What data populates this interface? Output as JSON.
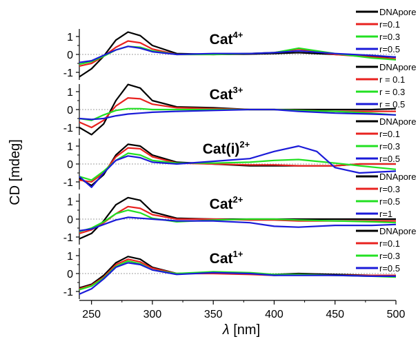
{
  "figure": {
    "ylabel": "CD [mdeg]",
    "xlabel_symbol": "λ",
    "xlabel_unit": " [nm]",
    "xticks": [
      "250",
      "300",
      "350",
      "400",
      "450",
      "500"
    ]
  },
  "colors": {
    "black": "#000000",
    "red": "#e8221f",
    "green": "#22e022",
    "blue": "#1a1ad8",
    "zero_line": "#808080"
  },
  "chart_data": [
    {
      "type": "line",
      "title_base": "Cat",
      "title_sup": "4+",
      "x": [
        240,
        250,
        260,
        270,
        280,
        290,
        300,
        320,
        350,
        380,
        400,
        420,
        450,
        480,
        500
      ],
      "ylim": [
        -1.5,
        1.5
      ],
      "yticks": [
        -1,
        0,
        1
      ],
      "series": [
        {
          "name": "DNApore",
          "color": "black",
          "values": [
            -1.25,
            -0.8,
            -0.1,
            0.8,
            1.25,
            1.05,
            0.5,
            0.05,
            0.0,
            0.02,
            0.05,
            0.1,
            0.0,
            -0.1,
            -0.15
          ]
        },
        {
          "name": "r=0.1",
          "color": "red",
          "values": [
            -0.65,
            -0.5,
            -0.1,
            0.4,
            0.75,
            0.65,
            0.3,
            0.0,
            0.0,
            0.05,
            0.1,
            0.3,
            0.0,
            -0.15,
            -0.25
          ]
        },
        {
          "name": "r=0.3",
          "color": "green",
          "values": [
            -0.55,
            -0.4,
            -0.1,
            0.25,
            0.45,
            0.4,
            0.2,
            0.0,
            0.0,
            0.05,
            0.1,
            0.35,
            0.05,
            -0.2,
            -0.3
          ]
        },
        {
          "name": "r=0.5",
          "color": "blue",
          "values": [
            -0.45,
            -0.35,
            -0.05,
            0.25,
            0.45,
            0.35,
            0.15,
            0.0,
            0.05,
            0.05,
            0.1,
            0.2,
            0.05,
            -0.05,
            -0.15
          ]
        }
      ]
    },
    {
      "type": "line",
      "title_base": "Cat",
      "title_sup": "3+",
      "x": [
        240,
        250,
        260,
        270,
        280,
        290,
        300,
        320,
        350,
        380,
        400,
        420,
        450,
        480,
        500
      ],
      "ylim": [
        -1.5,
        1.5
      ],
      "yticks": [
        -1,
        0,
        1
      ],
      "series": [
        {
          "name": "DNApore",
          "color": "black",
          "values": [
            -1.0,
            -1.4,
            -0.8,
            0.5,
            1.4,
            1.2,
            0.5,
            0.15,
            0.1,
            0.0,
            0.0,
            0.0,
            0.0,
            0.0,
            0.05
          ]
        },
        {
          "name": "r = 0.1",
          "color": "red",
          "values": [
            -0.7,
            -1.0,
            -0.6,
            0.2,
            0.65,
            0.6,
            0.3,
            0.1,
            0.05,
            0.0,
            0.0,
            -0.05,
            -0.1,
            -0.1,
            -0.1
          ]
        },
        {
          "name": "r = 0.3",
          "color": "green",
          "values": [
            -0.5,
            -0.6,
            -0.3,
            -0.05,
            0.05,
            0.05,
            0.0,
            0.0,
            0.0,
            0.0,
            0.0,
            -0.05,
            -0.1,
            -0.2,
            -0.3
          ]
        },
        {
          "name": "r = 0.5",
          "color": "blue",
          "values": [
            -0.5,
            -0.55,
            -0.5,
            -0.35,
            -0.25,
            -0.2,
            -0.15,
            -0.1,
            -0.05,
            0.0,
            0.0,
            -0.1,
            -0.2,
            -0.25,
            -0.3
          ]
        }
      ]
    },
    {
      "type": "line",
      "title_base": "Cat(i)",
      "title_sup": "2+",
      "x": [
        240,
        250,
        260,
        270,
        280,
        290,
        300,
        320,
        350,
        380,
        400,
        420,
        435,
        450,
        470,
        500
      ],
      "ylim": [
        -1.5,
        1.5
      ],
      "yticks": [
        -1,
        0,
        1
      ],
      "series": [
        {
          "name": "DNApore",
          "color": "black",
          "values": [
            -0.8,
            -1.2,
            -0.6,
            0.5,
            1.1,
            1.0,
            0.5,
            0.1,
            0.0,
            -0.1,
            -0.1,
            -0.1,
            -0.1,
            -0.1,
            0.0,
            0.0
          ]
        },
        {
          "name": "r=0.1",
          "color": "red",
          "values": [
            -0.9,
            -1.0,
            -0.5,
            0.4,
            0.9,
            0.85,
            0.4,
            0.05,
            0.0,
            -0.05,
            -0.05,
            -0.1,
            -0.1,
            -0.1,
            0.0,
            0.0
          ]
        },
        {
          "name": "r=0.3",
          "color": "green",
          "values": [
            -0.7,
            -0.9,
            -0.4,
            0.2,
            0.6,
            0.5,
            0.2,
            0.05,
            0.05,
            0.1,
            0.2,
            0.25,
            0.15,
            0.05,
            -0.1,
            -0.3
          ]
        },
        {
          "name": "r=0.5",
          "color": "blue",
          "values": [
            -0.7,
            -1.3,
            -0.5,
            0.2,
            0.45,
            0.35,
            0.1,
            0.0,
            0.15,
            0.3,
            0.7,
            1.0,
            0.7,
            -0.2,
            -0.5,
            -0.4
          ]
        }
      ]
    },
    {
      "type": "line",
      "title_base": "Cat",
      "title_sup": "2+",
      "x": [
        240,
        250,
        260,
        270,
        280,
        290,
        300,
        320,
        350,
        380,
        400,
        420,
        450,
        480,
        500
      ],
      "ylim": [
        -1.5,
        1.5
      ],
      "yticks": [
        -1,
        0,
        1
      ],
      "series": [
        {
          "name": "DNApore",
          "color": "black",
          "values": [
            -1.1,
            -0.8,
            -0.1,
            0.8,
            1.2,
            1.05,
            0.4,
            0.05,
            0.0,
            0.0,
            0.0,
            0.0,
            0.0,
            0.0,
            0.0
          ]
        },
        {
          "name": "r=0.3",
          "color": "red",
          "values": [
            -0.8,
            -0.6,
            -0.2,
            0.3,
            0.7,
            0.6,
            0.25,
            0.0,
            0.0,
            -0.05,
            -0.05,
            -0.1,
            -0.1,
            -0.1,
            -0.1
          ]
        },
        {
          "name": "r=0.5",
          "color": "green",
          "values": [
            -0.7,
            -0.5,
            -0.15,
            0.3,
            0.5,
            0.35,
            0.05,
            -0.15,
            -0.05,
            0.0,
            0.0,
            -0.05,
            -0.1,
            -0.15,
            -0.2
          ]
        },
        {
          "name": "r=1",
          "color": "blue",
          "values": [
            -0.65,
            -0.55,
            -0.3,
            -0.05,
            0.1,
            0.05,
            0.0,
            -0.1,
            -0.1,
            -0.2,
            -0.4,
            -0.45,
            -0.35,
            -0.35,
            -0.3
          ]
        }
      ]
    },
    {
      "type": "line",
      "title_base": "Cat",
      "title_sup": "1+",
      "x": [
        240,
        250,
        260,
        270,
        280,
        290,
        300,
        320,
        350,
        380,
        400,
        420,
        450,
        480,
        500
      ],
      "ylim": [
        -1.5,
        1.5
      ],
      "yticks": [
        -1,
        0,
        1
      ],
      "series": [
        {
          "name": "DNApore",
          "color": "black",
          "values": [
            -0.8,
            -0.6,
            -0.1,
            0.6,
            0.95,
            0.8,
            0.35,
            0.0,
            0.05,
            0.0,
            -0.05,
            0.0,
            -0.05,
            -0.1,
            -0.1
          ]
        },
        {
          "name": "r=0.1",
          "color": "red",
          "values": [
            -0.85,
            -0.65,
            -0.2,
            0.5,
            0.8,
            0.65,
            0.3,
            0.0,
            0.0,
            -0.05,
            -0.1,
            -0.05,
            -0.1,
            -0.1,
            -0.1
          ]
        },
        {
          "name": "r=0.3",
          "color": "green",
          "values": [
            -0.9,
            -0.7,
            -0.25,
            0.4,
            0.7,
            0.55,
            0.2,
            0.0,
            0.1,
            0.05,
            -0.05,
            -0.05,
            -0.1,
            -0.15,
            -0.2
          ]
        },
        {
          "name": "r=0.5",
          "color": "blue",
          "values": [
            -1.15,
            -0.85,
            -0.3,
            0.35,
            0.6,
            0.5,
            0.2,
            -0.05,
            0.05,
            0.0,
            -0.1,
            -0.1,
            -0.1,
            -0.15,
            -0.15
          ]
        }
      ]
    }
  ]
}
